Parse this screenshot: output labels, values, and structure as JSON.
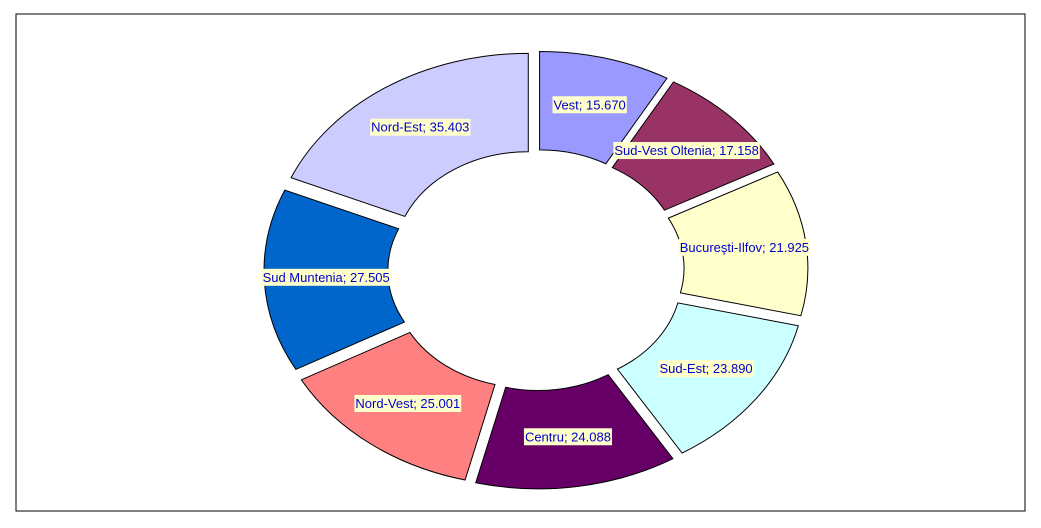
{
  "chart_data": {
    "type": "donut",
    "values": [
      15.67,
      17.158,
      21.925,
      23.89,
      24.088,
      25.001,
      27.505,
      35.403
    ],
    "value_labels": [
      "Vest; 15.670",
      "Sud-Vest Oltenia; 17.158",
      "Bucureşti-Ilfov; 21.925",
      "Sud-Est; 23.890",
      "Centru; 24.088",
      "Nord-Vest; 25.001",
      "Sud Muntenia; 27.505",
      "Nord-Est; 35.403"
    ],
    "colors": [
      "#9999ff",
      "#993366",
      "#ffffcc",
      "#ccffff",
      "#660066",
      "#ff8080",
      "#0066cc",
      "#ccccff"
    ]
  }
}
